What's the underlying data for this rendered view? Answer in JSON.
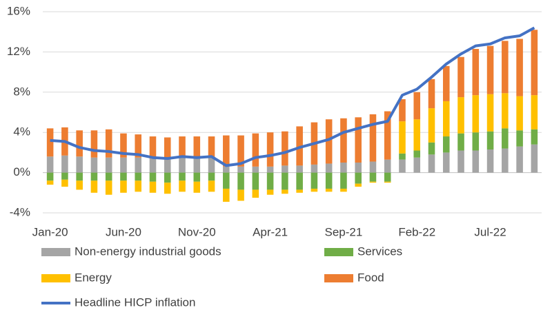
{
  "chart_data": {
    "type": "stacked-bar-line",
    "categories": [
      "Jan-20",
      null,
      null,
      null,
      null,
      "Jun-20",
      null,
      null,
      null,
      null,
      "Nov-20",
      null,
      null,
      null,
      null,
      "Apr-21",
      null,
      null,
      null,
      null,
      "Sep-21",
      null,
      null,
      null,
      null,
      "Feb-22",
      null,
      null,
      null,
      null,
      "Jul-22",
      null,
      null,
      null
    ],
    "series": [
      {
        "name": "Non-energy industrial goods",
        "color": "#a5a5a5",
        "kind": "bar",
        "values": [
          1.6,
          1.7,
          1.6,
          1.5,
          1.5,
          1.5,
          1.5,
          1.4,
          1.3,
          1.5,
          1.5,
          1.5,
          0.6,
          0.6,
          0.6,
          0.6,
          0.7,
          0.7,
          0.8,
          0.9,
          1.0,
          1.0,
          1.1,
          1.3,
          1.3,
          1.5,
          1.8,
          2.0,
          2.2,
          2.2,
          2.3,
          2.4,
          2.6,
          2.8
        ]
      },
      {
        "name": "Services",
        "color": "#70ad47",
        "kind": "bar",
        "values": [
          -0.8,
          -0.7,
          -0.8,
          -0.8,
          -0.8,
          -0.8,
          -0.8,
          -0.9,
          -1.0,
          -0.8,
          -0.9,
          -0.8,
          -1.6,
          -1.7,
          -1.7,
          -1.7,
          -1.7,
          -1.7,
          -1.6,
          -1.6,
          -1.6,
          -1.1,
          -0.9,
          -0.9,
          0.6,
          0.7,
          1.2,
          1.6,
          1.7,
          1.8,
          1.8,
          2.0,
          1.6,
          1.5
        ]
      },
      {
        "name": "Energy",
        "color": "#ffc000",
        "kind": "bar",
        "values": [
          -0.4,
          -0.7,
          -0.9,
          -1.2,
          -1.4,
          -1.2,
          -1.1,
          -1.1,
          -1.1,
          -1.1,
          -1.1,
          -1.1,
          -1.3,
          -1.1,
          -0.8,
          -0.5,
          -0.4,
          -0.3,
          -0.3,
          -0.3,
          -0.3,
          -0.3,
          -0.1,
          -0.1,
          3.2,
          3.1,
          3.4,
          3.5,
          3.6,
          3.7,
          3.7,
          3.5,
          3.4,
          3.4
        ]
      },
      {
        "name": "Food",
        "color": "#ed7d31",
        "kind": "bar",
        "values": [
          2.8,
          2.8,
          2.6,
          2.7,
          2.8,
          2.4,
          2.3,
          2.2,
          2.2,
          2.1,
          2.1,
          2.1,
          3.1,
          3.1,
          3.3,
          3.4,
          3.4,
          3.9,
          4.2,
          4.4,
          4.4,
          4.5,
          4.7,
          4.8,
          2.2,
          2.7,
          2.9,
          3.5,
          4.0,
          4.6,
          4.8,
          5.2,
          5.7,
          6.5
        ]
      },
      {
        "name": "Headline HICP inflation",
        "color": "#4472c4",
        "kind": "line",
        "values": [
          3.2,
          3.1,
          2.5,
          2.2,
          2.1,
          1.9,
          1.8,
          1.5,
          1.4,
          1.6,
          1.5,
          1.6,
          0.7,
          0.9,
          1.5,
          1.7,
          2.0,
          2.5,
          2.9,
          3.3,
          4.0,
          4.4,
          4.8,
          5.1,
          7.7,
          8.3,
          9.5,
          10.8,
          11.8,
          12.6,
          12.8,
          13.4,
          13.6,
          14.4
        ]
      }
    ],
    "ylim": [
      -4,
      16
    ],
    "yticks": [
      {
        "value": -4,
        "label": "-4%"
      },
      {
        "value": 0,
        "label": "0%"
      },
      {
        "value": 4,
        "label": "4%"
      },
      {
        "value": 8,
        "label": "8%"
      },
      {
        "value": 12,
        "label": "12%"
      },
      {
        "value": 16,
        "label": "16%"
      }
    ],
    "grid": true,
    "legend": "bottom"
  }
}
